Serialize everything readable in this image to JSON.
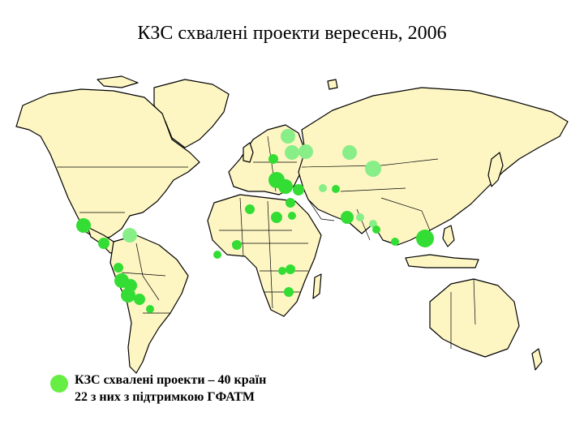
{
  "title": "КЗС схвалені проекти вересень, 2006",
  "colors": {
    "land": "#fdf6c3",
    "project_main": "#33dd33",
    "project_gfatm": "#88ee88",
    "legend_dot": "#66ee44"
  },
  "legend": {
    "line1": "КЗС схвалені проекти – 40 країн",
    "line2": "22 з них з підтримкою ГФАТМ"
  }
}
